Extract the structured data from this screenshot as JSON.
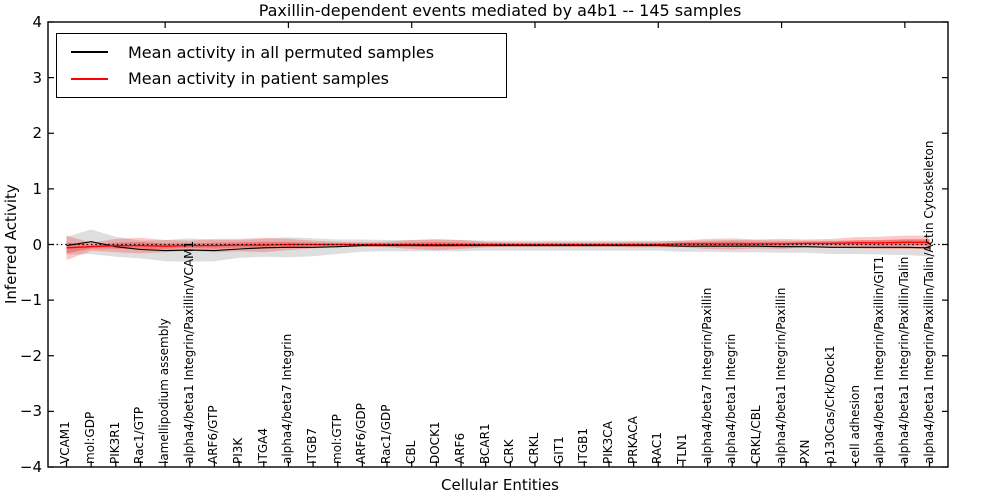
{
  "chart_data": {
    "type": "line",
    "title": "Paxillin-dependent events mediated by a4b1 -- 145 samples",
    "xlabel": "Cellular Entities",
    "ylabel": "Inferred Activity",
    "ylim": [
      -4,
      4
    ],
    "yticks": [
      4,
      3,
      2,
      1,
      0,
      -1,
      -2,
      -3,
      -4
    ],
    "grid": false,
    "legend_position": "upper left",
    "zero_line": {
      "value": 0,
      "style": "dotted",
      "color": "#000000"
    },
    "categories": [
      "VCAM1",
      "mol:GDP",
      "PIK3R1",
      "Rac1/GTP",
      "lamellipodium assembly",
      "alpha4/beta1 Integrin/Paxillin/VCAM1",
      "ARF6/GTP",
      "PI3K",
      "ITGA4",
      "alpha4/beta7 Integrin",
      "ITGB7",
      "mol:GTP",
      "ARF6/GDP",
      "Rac1/GDP",
      "CBL",
      "DOCK1",
      "ARF6",
      "BCAR1",
      "CRK",
      "CRKL",
      "GIT1",
      "ITGB1",
      "PIK3CA",
      "PRKACA",
      "RAC1",
      "TLN1",
      "alpha4/beta7 Integrin/Paxillin",
      "alpha4/beta1 Integrin",
      "CRKL/CBL",
      "alpha4/beta1 Integrin/Paxillin",
      "PXN",
      "p130Cas/Crk/Dock1",
      "cell adhesion",
      "alpha4/beta1 Integrin/Paxillin/GIT1",
      "alpha4/beta1 Integrin/Paxillin/Talin",
      "alpha4/beta1 Integrin/Paxillin/Talin/Actin Cytoskeleton"
    ],
    "series": [
      {
        "name": "Mean activity in all permuted samples",
        "color": "#000000",
        "band_color": "rgba(0,0,0,0.13)",
        "mean": [
          -0.02,
          0.05,
          -0.04,
          -0.09,
          -0.11,
          -0.1,
          -0.11,
          -0.08,
          -0.06,
          -0.05,
          -0.05,
          -0.04,
          -0.02,
          -0.02,
          -0.02,
          -0.02,
          -0.02,
          -0.02,
          -0.02,
          -0.02,
          -0.02,
          -0.02,
          -0.02,
          -0.02,
          -0.02,
          -0.03,
          -0.03,
          -0.03,
          -0.03,
          -0.04,
          -0.04,
          -0.05,
          -0.05,
          -0.05,
          -0.05,
          -0.06
        ],
        "std": [
          0.16,
          0.22,
          0.18,
          0.16,
          0.19,
          0.21,
          0.19,
          0.16,
          0.16,
          0.18,
          0.16,
          0.13,
          0.11,
          0.1,
          0.1,
          0.1,
          0.1,
          0.09,
          0.09,
          0.09,
          0.09,
          0.09,
          0.09,
          0.09,
          0.09,
          0.1,
          0.1,
          0.11,
          0.11,
          0.11,
          0.11,
          0.12,
          0.12,
          0.13,
          0.14,
          0.15
        ]
      },
      {
        "name": "Mean activity in patient samples",
        "color": "#ff0000",
        "band_color": "rgba(255,0,0,0.22)",
        "band_inner_color": "rgba(255,0,0,0.28)",
        "mean": [
          -0.06,
          -0.04,
          -0.02,
          -0.02,
          -0.03,
          -0.02,
          -0.02,
          -0.01,
          -0.01,
          0.0,
          0.0,
          0.0,
          0.0,
          0.0,
          0.0,
          0.0,
          0.0,
          0.0,
          0.0,
          0.0,
          0.0,
          0.0,
          0.0,
          0.0,
          0.0,
          0.01,
          0.01,
          0.01,
          0.01,
          0.01,
          0.02,
          0.02,
          0.03,
          0.03,
          0.04,
          0.04
        ],
        "std": [
          0.22,
          0.07,
          0.12,
          0.14,
          0.11,
          0.09,
          0.12,
          0.11,
          0.13,
          0.1,
          0.07,
          0.05,
          0.04,
          0.05,
          0.08,
          0.1,
          0.08,
          0.05,
          0.04,
          0.04,
          0.04,
          0.04,
          0.04,
          0.05,
          0.05,
          0.06,
          0.09,
          0.1,
          0.08,
          0.09,
          0.07,
          0.08,
          0.1,
          0.11,
          0.12,
          0.12
        ]
      }
    ]
  }
}
